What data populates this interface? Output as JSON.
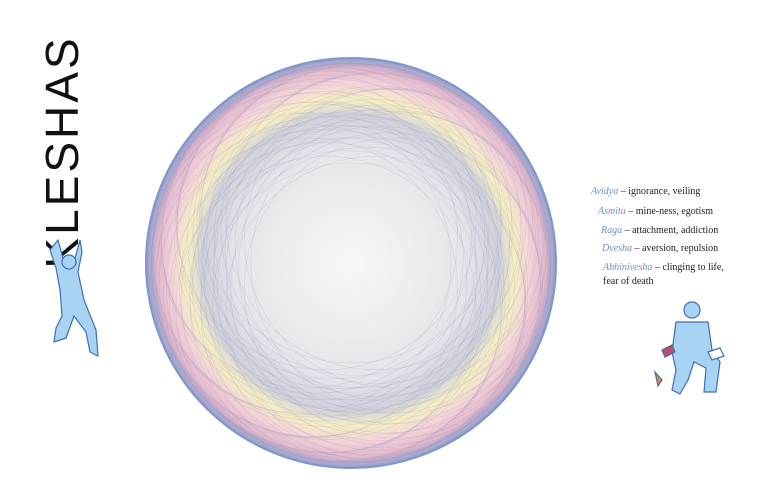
{
  "title": "KLESHAS",
  "kleshas": [
    {
      "name": "Avidya",
      "meaning": "– ignorance, veiling"
    },
    {
      "name": "Asmita",
      "meaning": "– mine-ness, egotism"
    },
    {
      "name": "Raga",
      "meaning": "– attachment, addiction"
    },
    {
      "name": "Dvesha",
      "meaning": "– aversion, repulsion"
    },
    {
      "name": "Abhinivesha",
      "meaning": "– clinging to life, fear of death"
    }
  ]
}
